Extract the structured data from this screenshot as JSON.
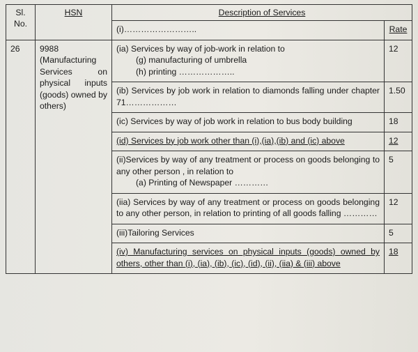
{
  "headers": {
    "sl": "Sl. No.",
    "hsn": "HSN",
    "desc": "Description of Services",
    "rate": "Rate"
  },
  "row": {
    "sl": "26",
    "hsn": "9988 (Manufacturing Services on physical inputs (goods) owned by others)"
  },
  "items": {
    "i": {
      "desc": "(i)……………………..",
      "rate": ""
    },
    "ia": {
      "desc": "(ia) Services by way of job-work in relation to",
      "g": "(g) manufacturing of umbrella",
      "h": "(h) printing ………………..",
      "rate": "12"
    },
    "ib": {
      "desc": "(ib) Services by job work in relation to diamonds falling under chapter 71………………",
      "rate": "1.50"
    },
    "ic": {
      "desc": "(ic) Services by way of job work in relation to bus body building",
      "rate": "18"
    },
    "id": {
      "desc": "(id) Services by job work other than (i),(ia),(ib) and (ic) above",
      "rate": "12"
    },
    "ii": {
      "desc": "(ii)Services by way of any treatment or process on goods belonging to any other person , in relation to",
      "a": "(a) Printing of Newspaper …………",
      "rate": "5"
    },
    "iia": {
      "desc": "(iia) Services by way of any treatment or process on goods belonging to any other person, in relation to printing of all goods falling …………",
      "rate": "12"
    },
    "iii": {
      "desc": "(iii)Tailoring Services",
      "rate": "5"
    },
    "iv": {
      "desc": "(iv) Manufacturing services on physical inputs (goods) owned by others, other than (i), (ia), (ib), (ic), (id), (ii), (iia) & (iii) above",
      "rate": "18"
    }
  }
}
